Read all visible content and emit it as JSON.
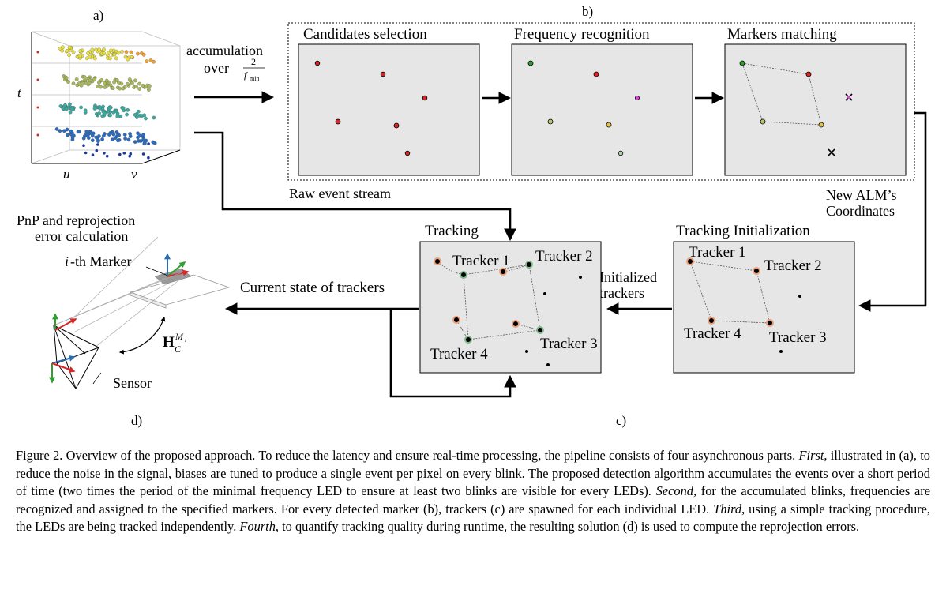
{
  "panel_labels": {
    "a": "a)",
    "b": "b)",
    "c": "c)",
    "d": "d)"
  },
  "panel_a": {
    "axis_t": "t",
    "axis_u": "u",
    "axis_v": "v"
  },
  "accumulation": {
    "line1": "accumulation",
    "over": "over",
    "frac_num": "2",
    "frac_den": "f",
    "frac_den_sub": "min"
  },
  "panel_b": {
    "candidates_title": "Candidates selection",
    "frequency_title": "Frequency recognition",
    "matching_title": "Markers matching",
    "raw_stream_label": "Raw event stream",
    "new_alm_line1": "New ALM’s",
    "new_alm_line2": "Coordinates"
  },
  "panel_c": {
    "tracking_title": "Tracking",
    "tracking_init_title": "Tracking Initialization",
    "initialized_line1": "Initialized",
    "initialized_line2": "trackers",
    "current_state": "Current state of trackers",
    "tracker1": "Tracker 1",
    "tracker2": "Tracker 2",
    "tracker3": "Tracker 3",
    "tracker4": "Tracker 4"
  },
  "panel_d": {
    "pnp_line1": "PnP and reprojection",
    "pnp_line2": "error calculation",
    "marker_i": "i",
    "marker_rest": "-th Marker",
    "sensor": "Sensor",
    "homography_H": "H",
    "homography_sub": "C",
    "homography_sup": "M",
    "homography_sup_sub": "i"
  },
  "colors": {
    "panel_bg": "#e6e6e6",
    "red_led": "#d62728",
    "green_led": "#2ca02c",
    "tracker_ring": "#e8a07a",
    "tracker_green": "#7fb88a"
  },
  "caption": {
    "p1": "Figure 2.  Overview of the proposed approach.  To reduce the latency and ensure real-time processing, the pipeline consists of four asynchronous parts. ",
    "first": "First",
    "p2": ", illustrated in (a), to reduce the noise in the signal, biases are tuned to produce a single event per pixel on every blink. The proposed detection algorithm accumulates the events over a short period of time (two times the period of the minimal frequency LED to ensure at least two blinks are visible for every LEDs). ",
    "second": "Second",
    "p3": ", for the accumulated blinks, frequencies are recognized and assigned to the specified markers. For every detected marker (b), trackers (c) are spawned for each individual LED. ",
    "third": "Third",
    "p4": ", using a simple tracking procedure, the LEDs are being tracked independently. ",
    "fourth": "Fourth",
    "p5": ", to quantify tracking quality during runtime, the resulting solution (d) is used to compute the reprojection errors."
  }
}
